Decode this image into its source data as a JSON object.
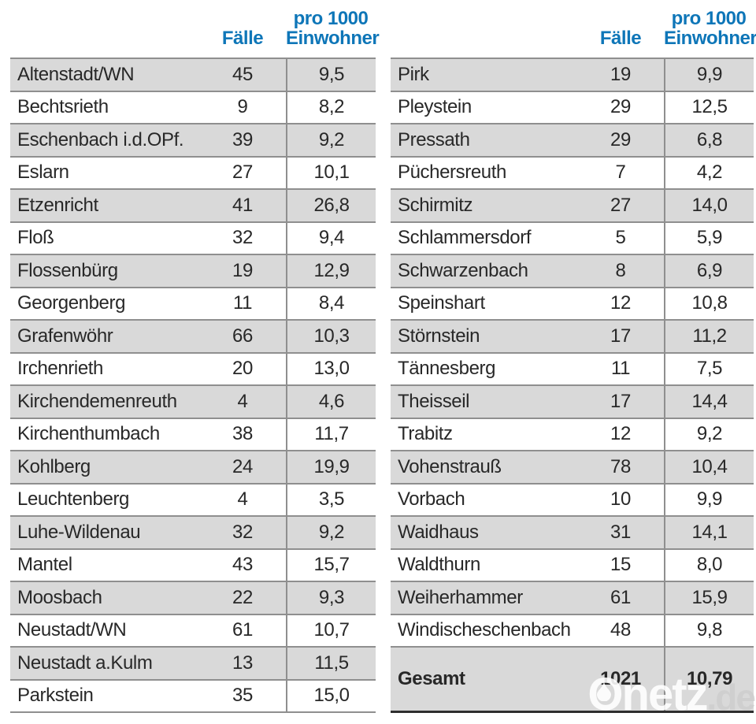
{
  "chart_data": {
    "type": "table",
    "columns": {
      "cases_label": "Fälle",
      "per1000_line1": "pro 1000",
      "per1000_line2": "Einwohner"
    },
    "left_table": {
      "rows": [
        {
          "name": "Altenstadt/WN",
          "cases": "45",
          "rate": "9,5"
        },
        {
          "name": "Bechtsrieth",
          "cases": "9",
          "rate": "8,2"
        },
        {
          "name": "Eschenbach i.d.OPf.",
          "cases": "39",
          "rate": "9,2"
        },
        {
          "name": "Eslarn",
          "cases": "27",
          "rate": "10,1"
        },
        {
          "name": "Etzenricht",
          "cases": "41",
          "rate": "26,8"
        },
        {
          "name": "Floß",
          "cases": "32",
          "rate": "9,4"
        },
        {
          "name": "Flossenbürg",
          "cases": "19",
          "rate": "12,9"
        },
        {
          "name": "Georgenberg",
          "cases": "11",
          "rate": "8,4"
        },
        {
          "name": "Grafenwöhr",
          "cases": "66",
          "rate": "10,3"
        },
        {
          "name": "Irchenrieth",
          "cases": "20",
          "rate": "13,0"
        },
        {
          "name": "Kirchendemenreuth",
          "cases": "4",
          "rate": "4,6"
        },
        {
          "name": "Kirchenthumbach",
          "cases": "38",
          "rate": "11,7"
        },
        {
          "name": "Kohlberg",
          "cases": "24",
          "rate": "19,9"
        },
        {
          "name": "Leuchtenberg",
          "cases": "4",
          "rate": "3,5"
        },
        {
          "name": "Luhe-Wildenau",
          "cases": "32",
          "rate": "9,2"
        },
        {
          "name": "Mantel",
          "cases": "43",
          "rate": "15,7"
        },
        {
          "name": "Moosbach",
          "cases": "22",
          "rate": "9,3"
        },
        {
          "name": "Neustadt/WN",
          "cases": "61",
          "rate": "10,7"
        },
        {
          "name": "Neustadt a.Kulm",
          "cases": "13",
          "rate": "11,5"
        },
        {
          "name": "Parkstein",
          "cases": "35",
          "rate": "15,0"
        }
      ]
    },
    "right_table": {
      "rows": [
        {
          "name": "Pirk",
          "cases": "19",
          "rate": "9,9"
        },
        {
          "name": "Pleystein",
          "cases": "29",
          "rate": "12,5"
        },
        {
          "name": "Pressath",
          "cases": "29",
          "rate": "6,8"
        },
        {
          "name": "Püchersreuth",
          "cases": "7",
          "rate": "4,2"
        },
        {
          "name": "Schirmitz",
          "cases": "27",
          "rate": "14,0"
        },
        {
          "name": "Schlammersdorf",
          "cases": "5",
          "rate": "5,9"
        },
        {
          "name": "Schwarzenbach",
          "cases": "8",
          "rate": "6,9"
        },
        {
          "name": "Speinshart",
          "cases": "12",
          "rate": "10,8"
        },
        {
          "name": "Störnstein",
          "cases": "17",
          "rate": "11,2"
        },
        {
          "name": "Tännesberg",
          "cases": "11",
          "rate": "7,5"
        },
        {
          "name": "Theisseil",
          "cases": "17",
          "rate": "14,4"
        },
        {
          "name": "Trabitz",
          "cases": "12",
          "rate": "9,2"
        },
        {
          "name": "Vohenstrauß",
          "cases": "78",
          "rate": "10,4"
        },
        {
          "name": "Vorbach",
          "cases": "10",
          "rate": "9,9"
        },
        {
          "name": "Waidhaus",
          "cases": "31",
          "rate": "14,1"
        },
        {
          "name": "Waldthurn",
          "cases": "15",
          "rate": "8,0"
        },
        {
          "name": "Weiherhammer",
          "cases": "61",
          "rate": "15,9"
        },
        {
          "name": "Windischeschenbach",
          "cases": "48",
          "rate": "9,8"
        }
      ],
      "total": {
        "label": "Gesamt",
        "cases": "1021",
        "rate": "10,79"
      }
    }
  },
  "watermark": {
    "brand": "Onetz",
    "suffix": ".de"
  },
  "colors": {
    "header_blue": "#0e76b8",
    "row_gray": "#d9d9d9",
    "row_white": "#ffffff",
    "border_gray": "#8f8f8f",
    "text": "#282828",
    "total_border": "#2e2e2e"
  }
}
